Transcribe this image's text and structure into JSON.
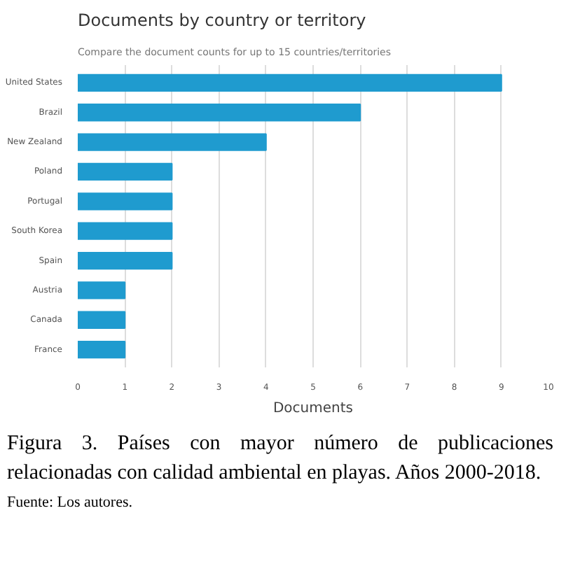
{
  "chart_data": {
    "type": "bar",
    "orientation": "horizontal",
    "title": "Documents by country or territory",
    "subtitle": "Compare the document counts for up to 15 countries/territories",
    "xlabel": "Documents",
    "categories": [
      "United States",
      "Brazil",
      "New Zealand",
      "Poland",
      "Portugal",
      "South Korea",
      "Spain",
      "Austria",
      "Canada",
      "France"
    ],
    "values": [
      9,
      6,
      4,
      2,
      2,
      2,
      2,
      1,
      1,
      1
    ],
    "color": "#1f9bcf",
    "xlim": [
      0,
      10
    ],
    "xticks": [
      0,
      1,
      2,
      3,
      4,
      5,
      6,
      7,
      8,
      9,
      10
    ],
    "grid": "x",
    "annotations": [
      "Figura 3. Países con mayor número de publicaciones relacionadas con calidad ambiental en playas. Años 2000-2018.",
      "Fuente: Los autores."
    ]
  }
}
